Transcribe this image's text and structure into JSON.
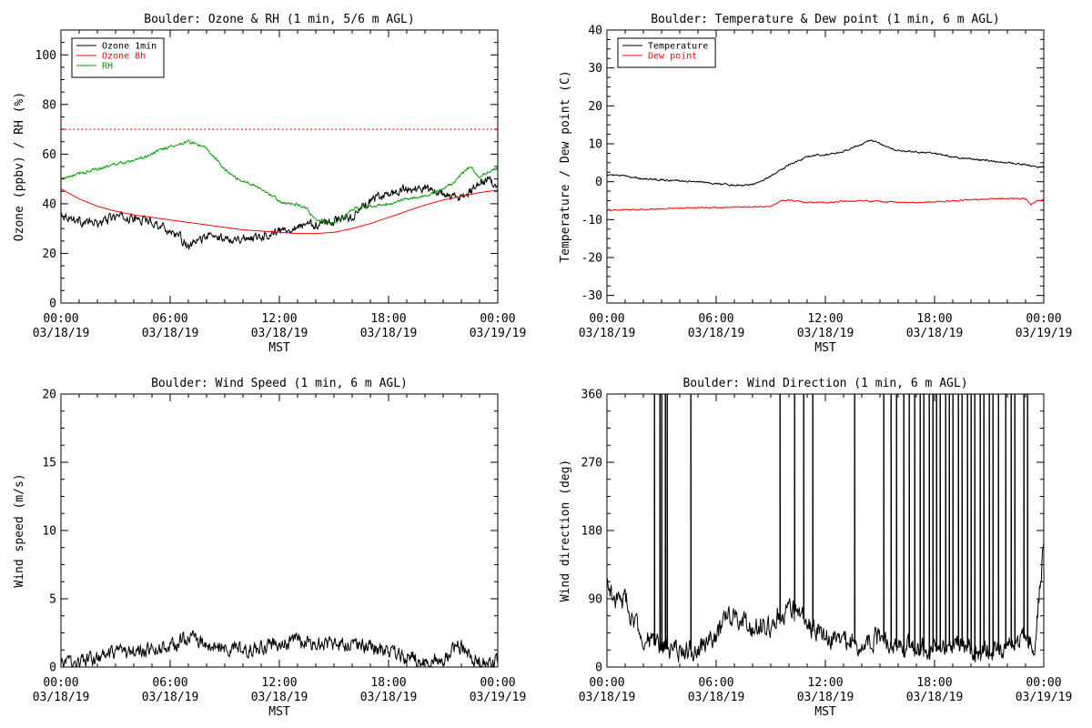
{
  "chart_data": [
    {
      "type": "line",
      "title": "Boulder: Ozone & RH (1 min, 5/6 m AGL)",
      "xlabel": "MST",
      "ylabel": "Ozone (ppbv) / RH (%)",
      "xlim_hours": [
        0,
        24
      ],
      "ylim": [
        0,
        110
      ],
      "xticks": [
        {
          "hour": 0,
          "time": "00:00",
          "date": "03/18/19"
        },
        {
          "hour": 6,
          "time": "06:00",
          "date": "03/18/19"
        },
        {
          "hour": 12,
          "time": "12:00",
          "date": "03/18/19"
        },
        {
          "hour": 18,
          "time": "18:00",
          "date": "03/18/19"
        },
        {
          "hour": 24,
          "time": "00:00",
          "date": "03/19/19"
        }
      ],
      "yticks": [
        0,
        20,
        40,
        60,
        80,
        100
      ],
      "legend_position": "top-left",
      "reference_lines": [
        {
          "y": 70,
          "color": "#ff0000",
          "style": "dotted"
        }
      ],
      "series": [
        {
          "name": "Ozone 1min",
          "color": "#000000",
          "noise": 1.5,
          "x": [
            0,
            1,
            2,
            3,
            4,
            5,
            6,
            6.5,
            7,
            7.5,
            8,
            9,
            10,
            11,
            12,
            13,
            14,
            15,
            16,
            17,
            18,
            19,
            20,
            21,
            22,
            23,
            23.5,
            24
          ],
          "y": [
            36,
            33,
            32,
            35,
            34,
            33,
            29,
            27,
            22,
            25,
            27,
            26,
            26,
            27,
            29,
            31,
            32,
            33,
            35,
            41,
            44,
            46,
            46,
            44,
            42,
            48,
            50,
            45
          ]
        },
        {
          "name": "Ozone 8h",
          "color": "#ff0000",
          "noise": 0,
          "x": [
            0,
            1,
            2,
            3,
            4,
            5,
            6,
            7,
            8,
            9,
            10,
            11,
            12,
            13,
            14,
            15,
            16,
            17,
            18,
            19,
            20,
            21,
            22,
            23,
            24
          ],
          "y": [
            46,
            42,
            39,
            37,
            35.5,
            34.5,
            33.5,
            32.5,
            31.5,
            30.5,
            29.5,
            29,
            28.5,
            28,
            28,
            28.5,
            30,
            32,
            34.5,
            37,
            39.5,
            41.5,
            43,
            44.5,
            45.5
          ]
        },
        {
          "name": "RH",
          "color": "#00a000",
          "noise": 0.5,
          "x": [
            0,
            0.5,
            1,
            1.5,
            2,
            3,
            4,
            5,
            5.5,
            6,
            6.5,
            7,
            7.5,
            8,
            8.5,
            9,
            9.5,
            10,
            10.5,
            11,
            11.5,
            12,
            12.5,
            13,
            13.5,
            14,
            14.5,
            15,
            15.5,
            16,
            17,
            18,
            19,
            20,
            21,
            21.5,
            22,
            22.5,
            23,
            23.5,
            24
          ],
          "y": [
            50,
            51,
            52,
            53,
            54,
            56,
            57,
            60,
            62,
            63,
            64,
            65,
            64,
            62,
            58,
            54,
            51,
            49,
            48,
            46,
            44,
            41,
            40,
            40,
            38,
            33,
            33,
            32,
            34,
            38,
            39,
            40,
            42,
            43,
            46,
            48,
            52,
            55,
            51,
            53,
            54
          ]
        }
      ]
    },
    {
      "type": "line",
      "title": "Boulder: Temperature & Dew point (1 min, 6 m AGL)",
      "xlabel": "MST",
      "ylabel": "Temperature / Dew point (C)",
      "xlim_hours": [
        0,
        24
      ],
      "ylim": [
        -32,
        40
      ],
      "xticks": [
        {
          "hour": 0,
          "time": "00:00",
          "date": "03/18/19"
        },
        {
          "hour": 6,
          "time": "06:00",
          "date": "03/18/19"
        },
        {
          "hour": 12,
          "time": "12:00",
          "date": "03/18/19"
        },
        {
          "hour": 18,
          "time": "18:00",
          "date": "03/18/19"
        },
        {
          "hour": 24,
          "time": "00:00",
          "date": "03/19/19"
        }
      ],
      "yticks": [
        -30,
        -20,
        -10,
        0,
        10,
        20,
        30,
        40
      ],
      "legend_position": "top-left",
      "reference_lines": [],
      "series": [
        {
          "name": "Temperature",
          "color": "#000000",
          "noise": 0.2,
          "x": [
            0,
            1,
            2,
            3,
            4,
            5,
            6,
            7,
            7.5,
            8,
            8.5,
            9,
            9.5,
            10,
            10.5,
            11,
            11.5,
            12,
            12.5,
            13,
            13.5,
            14,
            14.5,
            15,
            15.5,
            16,
            17,
            18,
            19,
            20,
            21,
            22,
            23,
            23.5,
            24
          ],
          "y": [
            1.8,
            1.5,
            0.8,
            0.5,
            0.3,
            0,
            -0.5,
            -0.9,
            -1,
            -0.7,
            0.3,
            1.5,
            3,
            4.5,
            5.5,
            6.5,
            7,
            7.2,
            7.5,
            8,
            9,
            10,
            11,
            10,
            9,
            8.2,
            7.8,
            7.5,
            6.5,
            6,
            5.5,
            5,
            4.5,
            4,
            3.8
          ]
        },
        {
          "name": "Dew point",
          "color": "#ff0000",
          "noise": 0.15,
          "x": [
            0,
            2,
            4,
            6,
            8,
            9,
            9.5,
            10,
            11,
            12,
            13,
            14,
            15,
            16,
            17,
            18,
            19,
            20,
            21,
            22,
            23,
            23.3,
            23.7,
            24
          ],
          "y": [
            -7.5,
            -7.3,
            -7,
            -6.8,
            -6.6,
            -6.5,
            -5.2,
            -4.8,
            -5.5,
            -5.5,
            -5.2,
            -5,
            -5.2,
            -5.4,
            -5.5,
            -5.3,
            -5,
            -4.8,
            -4.6,
            -4.4,
            -4.5,
            -6,
            -5,
            -4.8
          ]
        }
      ]
    },
    {
      "type": "line",
      "title": "Boulder: Wind Speed (1 min, 6 m AGL)",
      "xlabel": "MST",
      "ylabel": "Wind speed (m/s)",
      "xlim_hours": [
        0,
        24
      ],
      "ylim": [
        0,
        20
      ],
      "xticks": [
        {
          "hour": 0,
          "time": "00:00",
          "date": "03/18/19"
        },
        {
          "hour": 6,
          "time": "06:00",
          "date": "03/18/19"
        },
        {
          "hour": 12,
          "time": "12:00",
          "date": "03/18/19"
        },
        {
          "hour": 18,
          "time": "18:00",
          "date": "03/18/19"
        },
        {
          "hour": 24,
          "time": "00:00",
          "date": "03/19/19"
        }
      ],
      "yticks": [
        0,
        5,
        10,
        15,
        20
      ],
      "legend_position": "none",
      "reference_lines": [],
      "series": [
        {
          "name": "",
          "color": "#000000",
          "noise": 0.45,
          "x": [
            0,
            1,
            2,
            3,
            4,
            5,
            6,
            6.5,
            7,
            7.5,
            8,
            9,
            10,
            11,
            12,
            13,
            14,
            15,
            16,
            17,
            18,
            19,
            20,
            21,
            21.5,
            22,
            22.5,
            23,
            23.5,
            24
          ],
          "y": [
            0.3,
            0.4,
            0.6,
            0.9,
            1.1,
            1.3,
            1.4,
            1.8,
            2.4,
            1.9,
            1.5,
            1.3,
            1.2,
            1.4,
            1.7,
            1.9,
            1.8,
            1.6,
            1.7,
            1.5,
            1.1,
            0.8,
            0.4,
            0.6,
            1.3,
            1.5,
            0.8,
            0.5,
            0.4,
            0.4
          ]
        }
      ]
    },
    {
      "type": "line",
      "title": "Boulder: Wind Direction (1 min, 6 m AGL)",
      "xlabel": "MST",
      "ylabel": "Wind direction (deg)",
      "xlim_hours": [
        0,
        24
      ],
      "ylim": [
        0,
        360
      ],
      "xticks": [
        {
          "hour": 0,
          "time": "00:00",
          "date": "03/18/19"
        },
        {
          "hour": 6,
          "time": "06:00",
          "date": "03/18/19"
        },
        {
          "hour": 12,
          "time": "12:00",
          "date": "03/18/19"
        },
        {
          "hour": 18,
          "time": "18:00",
          "date": "03/18/19"
        },
        {
          "hour": 24,
          "time": "00:00",
          "date": "03/19/19"
        }
      ],
      "yticks": [
        0,
        90,
        180,
        270,
        360
      ],
      "legend_position": "none",
      "reference_lines": [],
      "series": [
        {
          "name": "",
          "color": "#000000",
          "noise": 12,
          "spikes": [
            2.6,
            2.9,
            3.0,
            3.2,
            3.3,
            4.6,
            9.5,
            10.3,
            10.8,
            11.3,
            13.6,
            15.2,
            15.6,
            15.9,
            16.3,
            16.6,
            16.9,
            17.2,
            17.4,
            17.7,
            17.9,
            18.1,
            18.3,
            18.6,
            18.8,
            19.0,
            19.3,
            19.5,
            19.8,
            20.0,
            20.2,
            20.5,
            20.7,
            21.0,
            21.2,
            21.5,
            21.9,
            22.2,
            22.4,
            22.9,
            23.1
          ],
          "x": [
            0,
            0.5,
            1,
            1.5,
            2,
            2.5,
            3,
            4,
            5,
            6,
            6.5,
            7,
            7.5,
            8,
            8.5,
            9,
            9.5,
            10,
            11,
            12,
            13,
            14,
            15,
            16,
            17,
            18,
            19,
            20,
            21,
            22,
            23,
            23.5,
            24
          ],
          "y": [
            110,
            85,
            90,
            60,
            40,
            30,
            25,
            20,
            25,
            40,
            60,
            70,
            65,
            50,
            55,
            50,
            70,
            80,
            60,
            40,
            35,
            30,
            40,
            30,
            25,
            20,
            30,
            25,
            20,
            25,
            40,
            30,
            160
          ]
        }
      ]
    }
  ]
}
